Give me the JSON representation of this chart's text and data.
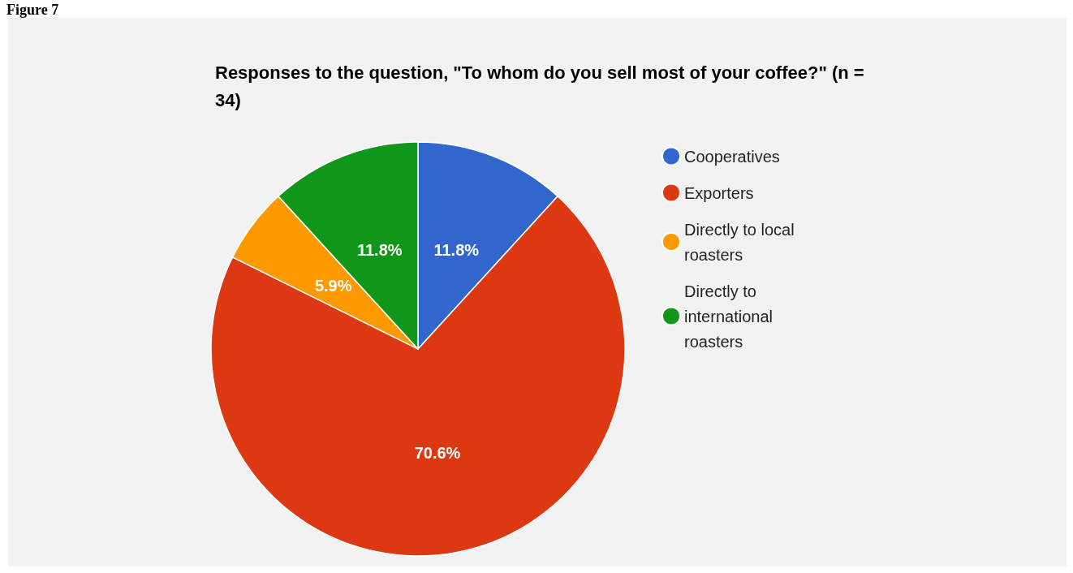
{
  "chart_data": {
    "type": "pie",
    "title": "Responses to the question, \"To whom do you sell most of your coffee?\" (n = 34)",
    "annotations": [
      "Figure 7"
    ],
    "categories": [
      "Cooperatives",
      "Exporters",
      "Directly to local roasters",
      "Directly to international roasters"
    ],
    "values": [
      11.8,
      70.6,
      5.9,
      11.8
    ],
    "colors": [
      "#3366cc",
      "#dc3912",
      "#ff9900",
      "#109618"
    ],
    "value_labels": [
      "11.8%",
      "70.6%",
      "5.9%",
      "11.8%"
    ],
    "legend": "right"
  }
}
